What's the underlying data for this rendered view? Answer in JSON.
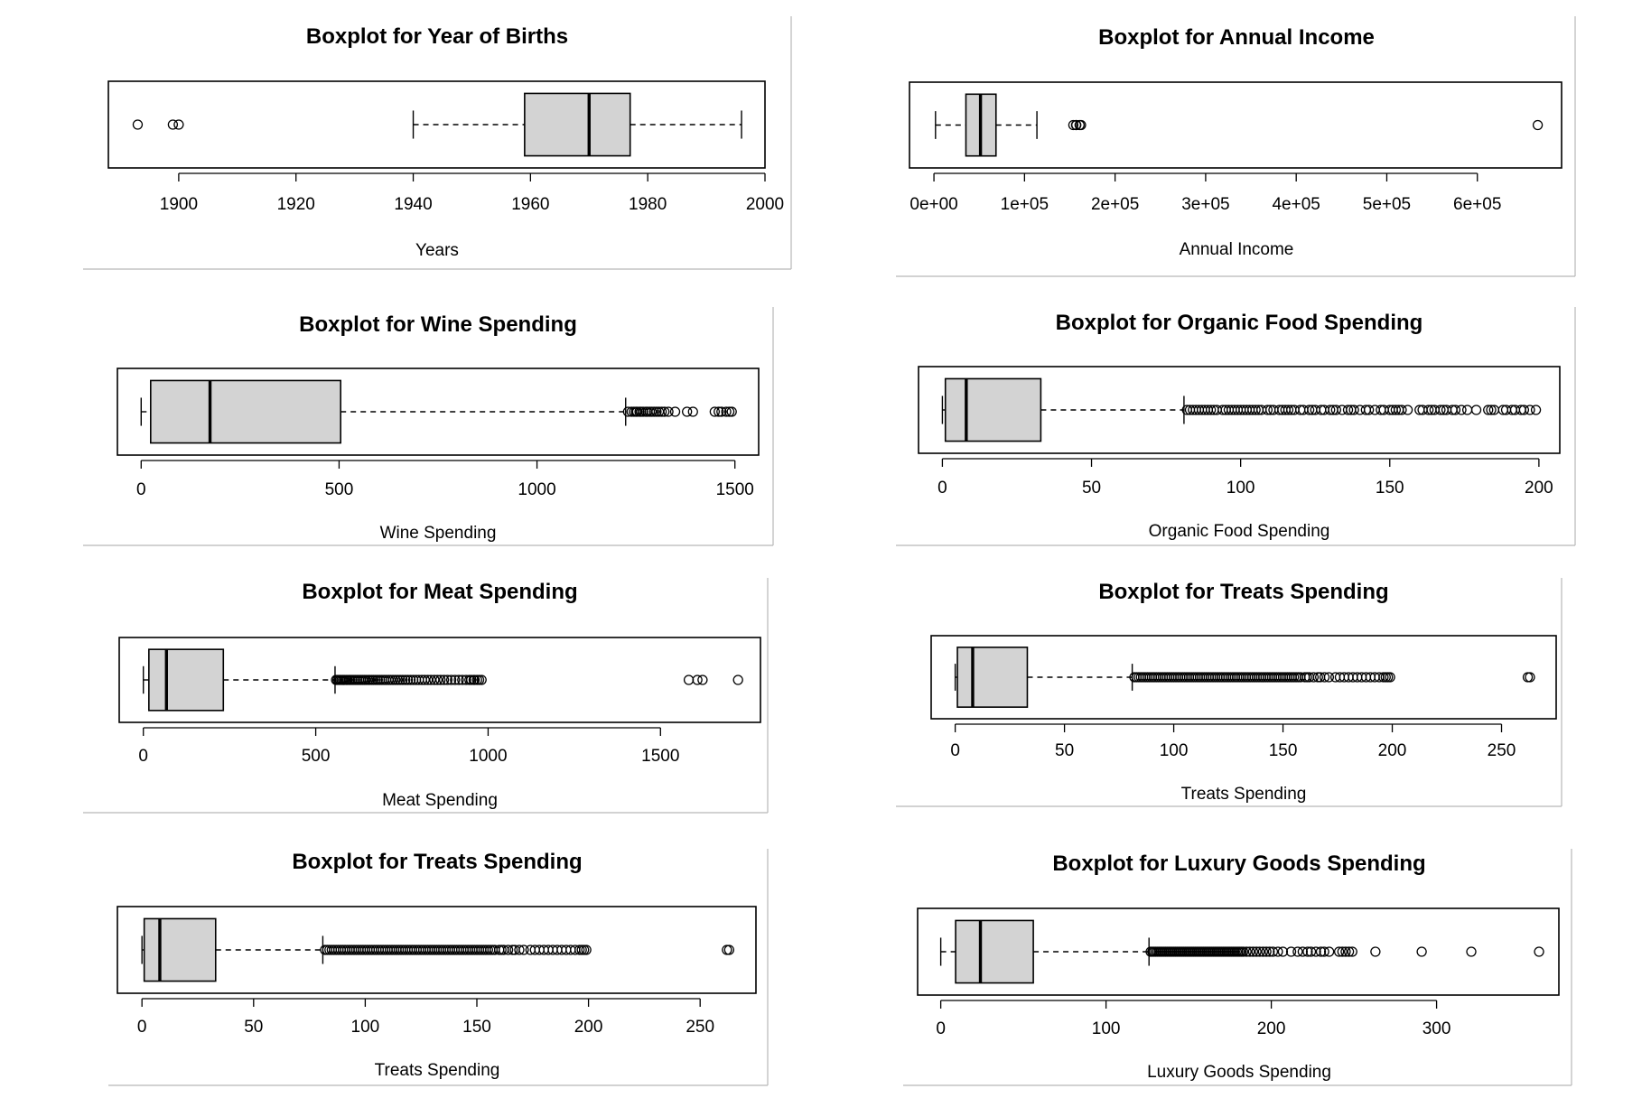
{
  "chart_data": [
    {
      "type": "boxplot",
      "title": "Boxplot for Year of Births",
      "xlabel": "Years",
      "xlim": [
        1888,
        2000
      ],
      "ticks": [
        1900,
        1920,
        1940,
        1960,
        1980,
        2000
      ],
      "tick_labels": [
        "1900",
        "1920",
        "1940",
        "1960",
        "1980",
        "2000"
      ],
      "whisker_low": 1940,
      "q1": 1959,
      "median": 1970,
      "q3": 1977,
      "whisker_high": 1996,
      "outliers": [
        1893,
        1899,
        1900
      ]
    },
    {
      "type": "boxplot",
      "title": "Boxplot for Annual Income",
      "xlabel": "Annual Income",
      "xlim": [
        -27000,
        693000
      ],
      "ticks": [
        0,
        100000,
        200000,
        300000,
        400000,
        500000,
        600000
      ],
      "tick_labels": [
        "0e+00",
        "1e+05",
        "2e+05",
        "3e+05",
        "4e+05",
        "5e+05",
        "6e+05"
      ],
      "whisker_low": 1730,
      "q1": 35300,
      "median": 51400,
      "q3": 68500,
      "whisker_high": 113700,
      "outliers": [
        153900,
        156900,
        157200,
        160800,
        162400,
        666666
      ]
    },
    {
      "type": "boxplot",
      "title": "Boxplot for Wine Spending",
      "xlabel": "Wine Spending",
      "xlim": [
        -60,
        1560
      ],
      "ticks": [
        0,
        500,
        1000,
        1500
      ],
      "tick_labels": [
        "0",
        "500",
        "1000",
        "1500"
      ],
      "whisker_low": 0,
      "q1": 24,
      "median": 174,
      "q3": 504,
      "whisker_high": 1224,
      "outliers": [
        1230,
        1239,
        1245,
        1250,
        1253,
        1259,
        1263,
        1268,
        1275,
        1279,
        1285,
        1290,
        1296,
        1302,
        1308,
        1315,
        1322,
        1332,
        1349,
        1379,
        1394,
        1449,
        1459,
        1466,
        1478,
        1486,
        1492
      ]
    },
    {
      "type": "boxplot",
      "title": "Boxplot for Organic Food Spending",
      "xlabel": "Organic Food Spending",
      "xlim": [
        -8,
        207
      ],
      "ticks": [
        0,
        50,
        100,
        150,
        200
      ],
      "tick_labels": [
        "0",
        "50",
        "100",
        "150",
        "200"
      ],
      "whisker_low": 0,
      "q1": 1,
      "median": 8,
      "q3": 33,
      "whisker_high": 81,
      "outliers": [
        82,
        83,
        84,
        85,
        86,
        87,
        88,
        89,
        90,
        91,
        92,
        94,
        95,
        96,
        97,
        98,
        99,
        100,
        101,
        102,
        103,
        104,
        105,
        106,
        107,
        109,
        110,
        111,
        113,
        114,
        115,
        116,
        117,
        118,
        120,
        121,
        123,
        124,
        125,
        127,
        128,
        130,
        131,
        132,
        134,
        136,
        137,
        138,
        140,
        142,
        143,
        145,
        147,
        148,
        150,
        151,
        152,
        153,
        154,
        156,
        160,
        161,
        163,
        164,
        165,
        167,
        168,
        169,
        171,
        172,
        174,
        176,
        179,
        183,
        184,
        185,
        188,
        189,
        191,
        192,
        194,
        195,
        197,
        199
      ]
    },
    {
      "type": "boxplot",
      "title": "Boxplot for Meat Spending",
      "xlabel": "Meat Spending",
      "xlim": [
        -70,
        1790
      ],
      "ticks": [
        0,
        500,
        1000,
        1500
      ],
      "tick_labels": [
        "0",
        "500",
        "1000",
        "1500"
      ],
      "whisker_low": 0,
      "q1": 16,
      "median": 67,
      "q3": 232,
      "whisker_high": 556,
      "outliers": [
        559,
        563,
        567,
        571,
        575,
        579,
        583,
        588,
        592,
        597,
        601,
        606,
        611,
        616,
        621,
        626,
        631,
        636,
        641,
        646,
        652,
        657,
        663,
        668,
        674,
        680,
        686,
        692,
        698,
        704,
        711,
        717,
        724,
        731,
        738,
        745,
        752,
        760,
        767,
        775,
        783,
        791,
        799,
        808,
        816,
        825,
        834,
        844,
        853,
        862,
        872,
        882,
        893,
        904,
        915,
        925,
        936,
        946,
        951,
        958,
        961,
        968,
        974,
        981,
        1582,
        1607,
        1622,
        1725
      ]
    },
    {
      "type": "boxplot",
      "title": "Boxplot for Treats Spending",
      "xlabel": "Treats Spending",
      "xlim": [
        -11,
        275
      ],
      "ticks": [
        0,
        50,
        100,
        150,
        200,
        250
      ],
      "tick_labels": [
        "0",
        "50",
        "100",
        "150",
        "200",
        "250"
      ],
      "whisker_low": 0,
      "q1": 1,
      "median": 8,
      "q3": 33,
      "whisker_high": 81,
      "outliers": [
        82,
        83,
        84,
        85,
        86,
        87,
        88,
        89,
        90,
        91,
        92,
        93,
        94,
        95,
        96,
        97,
        98,
        99,
        100,
        101,
        102,
        103,
        104,
        105,
        106,
        107,
        108,
        109,
        110,
        111,
        112,
        113,
        114,
        115,
        116,
        117,
        118,
        119,
        120,
        121,
        122,
        123,
        124,
        125,
        126,
        127,
        128,
        129,
        130,
        131,
        132,
        133,
        134,
        135,
        136,
        137,
        138,
        139,
        140,
        141,
        142,
        143,
        144,
        145,
        146,
        147,
        148,
        149,
        150,
        151,
        152,
        153,
        154,
        155,
        156,
        157,
        158,
        160,
        161,
        162,
        164,
        166,
        167,
        169,
        171,
        174,
        176,
        178,
        180,
        182,
        184,
        186,
        188,
        190,
        192,
        194,
        196,
        197,
        198,
        199,
        262,
        263
      ]
    },
    {
      "type": "boxplot",
      "title": "Boxplot for Treats Spending",
      "xlabel": "Treats Spending",
      "xlim": [
        -11,
        275
      ],
      "ticks": [
        0,
        50,
        100,
        150,
        200,
        250
      ],
      "tick_labels": [
        "0",
        "50",
        "100",
        "150",
        "200",
        "250"
      ],
      "whisker_low": 0,
      "q1": 1,
      "median": 8,
      "q3": 33,
      "whisker_high": 81,
      "outliers": [
        82,
        83,
        84,
        85,
        86,
        87,
        88,
        89,
        90,
        91,
        92,
        93,
        94,
        95,
        96,
        97,
        98,
        99,
        100,
        101,
        102,
        103,
        104,
        105,
        106,
        107,
        108,
        109,
        110,
        111,
        112,
        113,
        114,
        115,
        116,
        117,
        118,
        119,
        120,
        121,
        122,
        123,
        124,
        125,
        126,
        127,
        128,
        129,
        130,
        131,
        132,
        133,
        134,
        135,
        136,
        137,
        138,
        139,
        140,
        141,
        142,
        143,
        144,
        145,
        146,
        147,
        148,
        149,
        150,
        151,
        152,
        153,
        154,
        155,
        156,
        157,
        158,
        160,
        161,
        162,
        164,
        166,
        167,
        169,
        171,
        174,
        176,
        178,
        180,
        182,
        184,
        186,
        188,
        190,
        192,
        194,
        196,
        197,
        198,
        199,
        262,
        263
      ]
    },
    {
      "type": "boxplot",
      "title": "Boxplot for Luxury Goods Spending",
      "xlabel": "Luxury Goods Spending",
      "xlim": [
        -14,
        374
      ],
      "ticks": [
        0,
        100,
        200,
        300
      ],
      "tick_labels": [
        "0",
        "100",
        "200",
        "300"
      ],
      "whisker_low": 0,
      "q1": 9,
      "median": 24,
      "q3": 56,
      "whisker_high": 126,
      "outliers": [
        127,
        128,
        129,
        130,
        131,
        132,
        133,
        134,
        135,
        136,
        137,
        138,
        139,
        140,
        141,
        142,
        143,
        144,
        145,
        146,
        147,
        148,
        149,
        150,
        151,
        152,
        153,
        154,
        155,
        156,
        157,
        158,
        159,
        160,
        161,
        162,
        163,
        164,
        165,
        166,
        167,
        168,
        169,
        170,
        171,
        172,
        173,
        174,
        175,
        176,
        177,
        178,
        179,
        180,
        181,
        182,
        183,
        185,
        187,
        189,
        191,
        193,
        195,
        197,
        199,
        201,
        204,
        207,
        212,
        216,
        219,
        222,
        224,
        227,
        230,
        232,
        235,
        241,
        243,
        245,
        247,
        249,
        263,
        291,
        321,
        362
      ]
    }
  ]
}
